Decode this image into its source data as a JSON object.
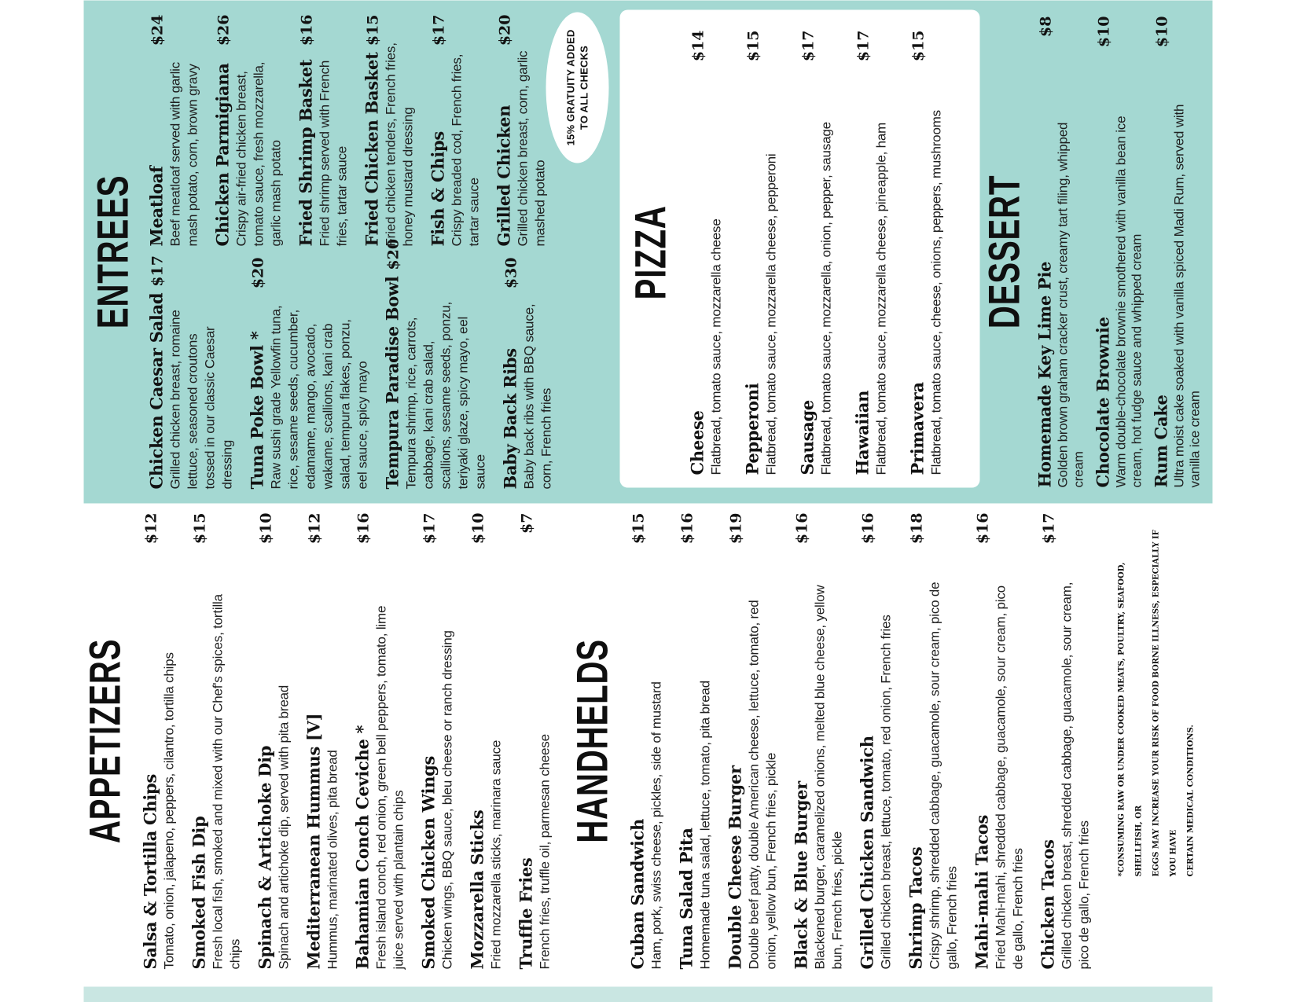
{
  "colors": {
    "teal": "#a4d8d2",
    "teal_light": "#c9e6e2",
    "paper": "#ffffff",
    "ink": "#141414"
  },
  "left_page": {
    "appetizers": {
      "title": "APPETIZERS",
      "items": [
        {
          "name": "Salsa & Tortilla Chips",
          "price": "$12",
          "desc": "Tomato, onion, jalapeno, peppers, cilantro, tortilla chips"
        },
        {
          "name": "Smoked Fish Dip",
          "price": "$15",
          "desc": "Fresh local fish, smoked and mixed with our Chef's spices, tortilla\nchips"
        },
        {
          "name": "Spinach & Artichoke Dip",
          "price": "$10",
          "desc": "Spinach and artichoke dip, served with pita bread"
        },
        {
          "name": "Mediterranean Hummus [V]",
          "price": "$12",
          "desc": "Hummus, marinated olives, pita bread"
        },
        {
          "name": "Bahamian Conch Ceviche *",
          "price": "$16",
          "desc": "Fresh island conch, red onion, green bell peppers, tomato, lime\njuice served with plantain chips"
        },
        {
          "name": "Smoked Chicken Wings",
          "price": "$17",
          "desc": "Chicken wings, BBQ sauce, bleu cheese or ranch dressing"
        },
        {
          "name": "Mozzarella Sticks",
          "price": "$10",
          "desc": "Fried mozzarella sticks, marinara sauce"
        },
        {
          "name": "Truffle Fries",
          "price": "$7",
          "desc": "French fries, truffle oil, parmesan cheese"
        }
      ]
    },
    "handhelds": {
      "title": "HANDHELDS",
      "items": [
        {
          "name": "Cuban Sandwich",
          "price": "$15",
          "desc": "Ham, pork, swiss cheese, pickles, side of mustard"
        },
        {
          "name": "Tuna Salad Pita",
          "price": "$16",
          "desc": "Homemade tuna salad, lettuce, tomato, pita bread"
        },
        {
          "name": "Double Cheese Burger",
          "price": "$19",
          "desc": "Double beef patty, double American cheese, lettuce, tomato, red\nonion, yellow bun, French fries, pickle"
        },
        {
          "name": "Black & Blue Burger",
          "price": "$16",
          "desc": "Blackened burger, caramelized onions, melted blue cheese, yellow\nbun, French fries, pickle"
        },
        {
          "name": "Grilled Chicken Sandwich",
          "price": "$16",
          "desc": "Grilled chicken breast, lettuce, tomato, red onion, French fries"
        },
        {
          "name": "Shrimp Tacos",
          "price": "$18",
          "desc": "Crispy shrimp, shredded cabbage, guacamole, sour cream, pico de\ngallo, French fries"
        },
        {
          "name": "Mahi-mahi Tacos",
          "price": "$16",
          "desc": "Fried Mahi-mahi, shredded cabbage, guacamole, sour cream, pico\nde gallo, French fries"
        },
        {
          "name": "Chicken Tacos",
          "price": "$17",
          "desc": "Grilled chicken breast, shredded cabbage, guacamole, sour cream,\npico de gallo, French fries"
        }
      ]
    },
    "disclaimer": "*CONSUMING RAW OR UNDER COOKED MEATS, POULTRY, SEAFOOD, SHELLFISH, OR\nEGGS MAY INCREASE YOUR RISK OF FOOD BORNE ILLNESS, ESPECIALLY IF YOU HAVE\nCERTAIN MEDICAL CONDITIONS."
  },
  "right_page": {
    "entrees": {
      "title": "ENTREES",
      "col1": [
        {
          "name": "Chicken Caesar Salad",
          "price": "$17",
          "desc": "Grilled chicken breast, romaine\nlettuce, seasoned croutons\ntossed in our classic Caesar\ndressing"
        },
        {
          "name": "Tuna Poke Bowl *",
          "price": "$20",
          "desc": "Raw sushi grade Yellowfin tuna,\nrice, sesame seeds, cucumber,\nedamame, mango, avocado,\nwakame, scallions, kani crab\nsalad, tempura flakes, ponzu,\neel sauce, spicy mayo"
        },
        {
          "name": "Tempura Paradise Bowl",
          "price": "$20",
          "desc": "Tempura shrimp, rice, carrots,\ncabbage, kani crab salad,\nscallions, sesame seeds, ponzu,\nteriyaki glaze, spicy mayo, eel\nsauce"
        },
        {
          "name": "Baby Back Ribs",
          "price": "$30",
          "desc": "Baby back ribs with BBQ sauce,\ncorn, French fries"
        }
      ],
      "col2": [
        {
          "name": "Meatloaf",
          "price": "$24",
          "desc": "Beef meatloaf served with garlic\nmash potato, corn, brown gravy"
        },
        {
          "name": "Chicken Parmigiana",
          "price": "$26",
          "desc": "Crispy air-fried chicken breast,\ntomato sauce, fresh mozzarella,\ngarlic mash potato"
        },
        {
          "name": "Fried Shrimp Basket",
          "price": "$16",
          "desc": "Fried shrimp served with French\nfries, tartar sauce"
        },
        {
          "name": "Fried Chicken Basket",
          "price": "$15",
          "desc": "Fried chicken tenders, French fries,\nhoney mustard dressing"
        },
        {
          "name": "Fish & Chips",
          "price": "$17",
          "desc": "Crispy breaded cod, French fries,\ntartar sauce"
        },
        {
          "name": "Grilled Chicken",
          "price": "$20",
          "desc": "Grilled chicken breast, corn, garlic\nmashed potato"
        }
      ]
    },
    "gratuity_note": "15% GRATUITY ADDED\nTO ALL CHECKS",
    "pizza": {
      "title": "PIZZA",
      "items": [
        {
          "name": "Cheese",
          "price": "$14",
          "desc": "Flatbread, tomato sauce, mozzarella cheese"
        },
        {
          "name": "Pepperoni",
          "price": "$15",
          "desc": "Flatbread, tomato sauce, mozzarella cheese, pepperoni"
        },
        {
          "name": "Sausage",
          "price": "$17",
          "desc": "Flatbread, tomato sauce, mozzarella, onion, pepper, sausage"
        },
        {
          "name": "Hawaiian",
          "price": "$17",
          "desc": "Flatbread, tomato sauce, mozzarella cheese, pineapple, ham"
        },
        {
          "name": "Primavera",
          "price": "$15",
          "desc": "Flatbread, tomato sauce, cheese, onions, peppers, mushrooms"
        }
      ]
    },
    "dessert": {
      "title": "DESSERT",
      "items": [
        {
          "name": "Homemade Key Lime Pie",
          "price": "$8",
          "desc": "Golden brown graham cracker crust, creamy tart filing, whipped\ncream"
        },
        {
          "name": "Chocolate Brownie",
          "price": "$10",
          "desc": "Warm double-chocolate brownie smothered with vanilla bean ice\ncream, hot fudge sauce and whipped cream"
        },
        {
          "name": "Rum Cake",
          "price": "$10",
          "desc": "Ultra moist cake soaked with vanilla spiced Madi Rum, served with\nvanilla ice cream"
        }
      ]
    }
  }
}
